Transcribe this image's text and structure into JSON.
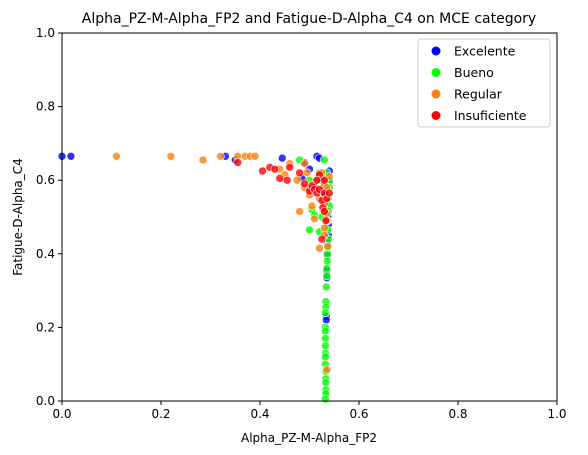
{
  "chart_data": {
    "type": "scatter",
    "title": "Alpha_PZ-M-Alpha_FP2 and Fatigue-D-Alpha_C4 on MCE category",
    "xlabel": "Alpha_PZ-M-Alpha_FP2",
    "ylabel": "Fatigue-D-Alpha_C4",
    "xlim": [
      0,
      1
    ],
    "ylim": [
      0,
      1
    ],
    "xticks": [
      "0.0",
      "0.2",
      "0.4",
      "0.6",
      "0.8",
      "1.0"
    ],
    "yticks": [
      "0.0",
      "0.2",
      "0.4",
      "0.6",
      "0.8",
      "1.0"
    ],
    "grid": false,
    "legend_position": "top-right",
    "series": [
      {
        "name": "Excelente",
        "color": "#0000ff",
        "points": [
          [
            0.0,
            0.665
          ],
          [
            0.018,
            0.665
          ],
          [
            0.33,
            0.665
          ],
          [
            0.35,
            0.655
          ],
          [
            0.445,
            0.66
          ],
          [
            0.49,
            0.648
          ],
          [
            0.5,
            0.63
          ],
          [
            0.515,
            0.665
          ],
          [
            0.52,
            0.66
          ],
          [
            0.522,
            0.62
          ],
          [
            0.525,
            0.6
          ],
          [
            0.53,
            0.58
          ],
          [
            0.532,
            0.56
          ],
          [
            0.535,
            0.54
          ],
          [
            0.535,
            0.52
          ],
          [
            0.537,
            0.5
          ],
          [
            0.538,
            0.48
          ],
          [
            0.538,
            0.45
          ],
          [
            0.536,
            0.43
          ],
          [
            0.536,
            0.395
          ],
          [
            0.535,
            0.355
          ],
          [
            0.535,
            0.335
          ],
          [
            0.534,
            0.23
          ],
          [
            0.534,
            0.22
          ],
          [
            0.5,
            0.575
          ],
          [
            0.54,
            0.595
          ],
          [
            0.54,
            0.625
          ],
          [
            0.485,
            0.605
          ],
          [
            0.51,
            0.58
          ]
        ]
      },
      {
        "name": "Bueno",
        "color": "#00ff00",
        "points": [
          [
            0.48,
            0.655
          ],
          [
            0.5,
            0.6
          ],
          [
            0.505,
            0.52
          ],
          [
            0.51,
            0.505
          ],
          [
            0.5,
            0.465
          ],
          [
            0.52,
            0.62
          ],
          [
            0.53,
            0.655
          ],
          [
            0.535,
            0.62
          ],
          [
            0.54,
            0.6
          ],
          [
            0.54,
            0.58
          ],
          [
            0.538,
            0.55
          ],
          [
            0.54,
            0.53
          ],
          [
            0.538,
            0.515
          ],
          [
            0.537,
            0.49
          ],
          [
            0.537,
            0.465
          ],
          [
            0.538,
            0.44
          ],
          [
            0.536,
            0.42
          ],
          [
            0.536,
            0.4
          ],
          [
            0.536,
            0.38
          ],
          [
            0.535,
            0.36
          ],
          [
            0.535,
            0.34
          ],
          [
            0.534,
            0.31
          ],
          [
            0.533,
            0.27
          ],
          [
            0.533,
            0.255
          ],
          [
            0.532,
            0.24
          ],
          [
            0.532,
            0.2
          ],
          [
            0.532,
            0.19
          ],
          [
            0.532,
            0.17
          ],
          [
            0.532,
            0.15
          ],
          [
            0.532,
            0.13
          ],
          [
            0.532,
            0.12
          ],
          [
            0.532,
            0.1
          ],
          [
            0.533,
            0.08
          ],
          [
            0.533,
            0.06
          ],
          [
            0.533,
            0.05
          ],
          [
            0.533,
            0.03
          ],
          [
            0.533,
            0.02
          ],
          [
            0.532,
            0.005
          ],
          [
            0.52,
            0.46
          ],
          [
            0.525,
            0.5
          ]
        ]
      },
      {
        "name": "Regular",
        "color": "#ff7f0e",
        "points": [
          [
            0.11,
            0.665
          ],
          [
            0.22,
            0.665
          ],
          [
            0.285,
            0.655
          ],
          [
            0.32,
            0.665
          ],
          [
            0.355,
            0.665
          ],
          [
            0.37,
            0.665
          ],
          [
            0.38,
            0.665
          ],
          [
            0.39,
            0.665
          ],
          [
            0.44,
            0.63
          ],
          [
            0.45,
            0.615
          ],
          [
            0.46,
            0.645
          ],
          [
            0.475,
            0.6
          ],
          [
            0.48,
            0.515
          ],
          [
            0.49,
            0.645
          ],
          [
            0.495,
            0.62
          ],
          [
            0.5,
            0.56
          ],
          [
            0.505,
            0.53
          ],
          [
            0.51,
            0.495
          ],
          [
            0.515,
            0.6
          ],
          [
            0.52,
            0.55
          ],
          [
            0.52,
            0.415
          ],
          [
            0.525,
            0.62
          ],
          [
            0.53,
            0.59
          ],
          [
            0.53,
            0.47
          ],
          [
            0.53,
            0.45
          ],
          [
            0.535,
            0.51
          ],
          [
            0.535,
            0.49
          ],
          [
            0.537,
            0.42
          ],
          [
            0.535,
            0.085
          ],
          [
            0.535,
            0.58
          ],
          [
            0.54,
            0.61
          ],
          [
            0.49,
            0.58
          ],
          [
            0.53,
            0.535
          ]
        ]
      },
      {
        "name": "Insuficiente",
        "color": "#ff0000",
        "points": [
          [
            0.355,
            0.648
          ],
          [
            0.405,
            0.625
          ],
          [
            0.42,
            0.635
          ],
          [
            0.43,
            0.63
          ],
          [
            0.44,
            0.605
          ],
          [
            0.455,
            0.6
          ],
          [
            0.46,
            0.635
          ],
          [
            0.48,
            0.62
          ],
          [
            0.49,
            0.59
          ],
          [
            0.5,
            0.57
          ],
          [
            0.505,
            0.585
          ],
          [
            0.51,
            0.575
          ],
          [
            0.515,
            0.565
          ],
          [
            0.52,
            0.575
          ],
          [
            0.525,
            0.545
          ],
          [
            0.527,
            0.525
          ],
          [
            0.53,
            0.6
          ],
          [
            0.53,
            0.565
          ],
          [
            0.533,
            0.49
          ],
          [
            0.535,
            0.55
          ],
          [
            0.52,
            0.615
          ],
          [
            0.515,
            0.6
          ],
          [
            0.54,
            0.565
          ],
          [
            0.525,
            0.44
          ],
          [
            0.53,
            0.515
          ]
        ]
      }
    ]
  }
}
